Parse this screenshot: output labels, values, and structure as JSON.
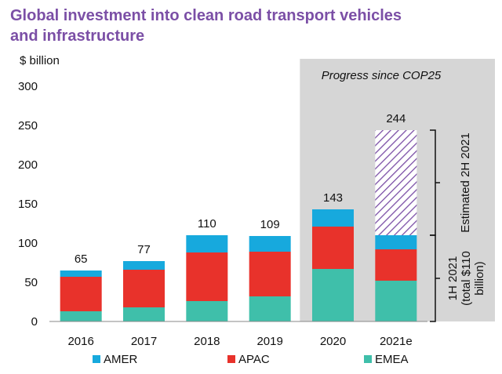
{
  "chart_data": {
    "type": "bar",
    "stacked": true,
    "title": "Global investment into clean road transport vehicles and infrastructure",
    "title_lines": [
      "Global investment into clean road transport vehicles",
      "and infrastructure"
    ],
    "ylabel": "$ billion",
    "ylim": [
      0,
      300
    ],
    "yticks": [
      0,
      50,
      100,
      150,
      200,
      250,
      300
    ],
    "categories": [
      "2016",
      "2017",
      "2018",
      "2019",
      "2020",
      "2021e"
    ],
    "series": [
      {
        "name": "EMEA",
        "color": "#3fbfaa",
        "values": [
          13,
          18,
          26,
          32,
          67,
          52
        ]
      },
      {
        "name": "APAC",
        "color": "#e8322b",
        "values": [
          44,
          48,
          62,
          57,
          54,
          40
        ]
      },
      {
        "name": "AMER",
        "color": "#17a9dd",
        "values": [
          8,
          11,
          22,
          20,
          22,
          18
        ]
      },
      {
        "name": "Estimated 2H 2021",
        "color": "#7b4fa6",
        "pattern": "hatched",
        "values": [
          0,
          0,
          0,
          0,
          0,
          134
        ]
      }
    ],
    "totals": [
      "65",
      "77",
      "110",
      "109",
      "143",
      "244"
    ],
    "legend": {
      "position": "bottom",
      "entries": [
        {
          "name": "AMER",
          "color": "#17a9dd"
        },
        {
          "name": "APAC",
          "color": "#e8322b"
        },
        {
          "name": "EMEA",
          "color": "#3fbfaa"
        }
      ]
    },
    "highlight": {
      "label": "Progress since COP25",
      "from_category": "2020",
      "to_category": "2021e",
      "color": "#d6d6d6"
    },
    "annotations": [
      {
        "text": "Estimated 2H 2021",
        "range": [
          110,
          244
        ]
      },
      {
        "lines": [
          "1H 2021",
          "(total $110",
          "billion)"
        ],
        "range": [
          0,
          110
        ]
      }
    ],
    "grid": false
  }
}
